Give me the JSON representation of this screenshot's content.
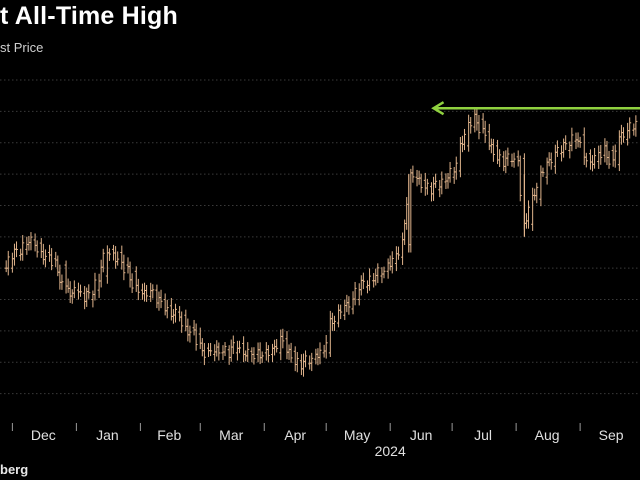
{
  "header": {
    "title": "t All-Time High",
    "subtitle": "st Price"
  },
  "footer": {
    "source": "berg"
  },
  "colors": {
    "background": "#000000",
    "bars": "#e0b48c",
    "arrow": "#8fd13f",
    "grid": "#3a3a3a"
  },
  "chart_data": {
    "type": "line",
    "title": "t All-Time High",
    "subtitle": "st Price",
    "xlabel": "",
    "ylabel": "",
    "x_axis": {
      "months": [
        "Dec",
        "Jan",
        "Feb",
        "Mar",
        "Apr",
        "May",
        "Jun",
        "Jul",
        "Aug",
        "Sep"
      ],
      "year": "2024"
    },
    "grid": true,
    "series": [
      {
        "name": "",
        "style": "ohlc-bars",
        "points": [
          [
            "2023-11-28",
            260
          ],
          [
            "2023-12-01",
            268
          ],
          [
            "2023-12-05",
            272
          ],
          [
            "2023-12-08",
            278
          ],
          [
            "2023-12-12",
            276
          ],
          [
            "2023-12-15",
            270
          ],
          [
            "2023-12-19",
            266
          ],
          [
            "2023-12-22",
            262
          ],
          [
            "2023-12-27",
            246
          ],
          [
            "2024-01-02",
            244
          ],
          [
            "2024-01-05",
            240
          ],
          [
            "2024-01-09",
            246
          ],
          [
            "2024-01-12",
            255
          ],
          [
            "2024-01-16",
            272
          ],
          [
            "2024-01-19",
            270
          ],
          [
            "2024-01-23",
            262
          ],
          [
            "2024-01-26",
            258
          ],
          [
            "2024-01-30",
            246
          ],
          [
            "2024-02-02",
            242
          ],
          [
            "2024-02-06",
            246
          ],
          [
            "2024-02-09",
            240
          ],
          [
            "2024-02-13",
            236
          ],
          [
            "2024-02-16",
            232
          ],
          [
            "2024-02-20",
            230
          ],
          [
            "2024-02-23",
            222
          ],
          [
            "2024-02-27",
            218
          ],
          [
            "2024-03-01",
            209
          ],
          [
            "2024-03-05",
            205
          ],
          [
            "2024-03-08",
            206
          ],
          [
            "2024-03-12",
            208
          ],
          [
            "2024-03-15",
            206
          ],
          [
            "2024-03-19",
            212
          ],
          [
            "2024-03-22",
            207
          ],
          [
            "2024-03-26",
            205
          ],
          [
            "2024-03-29",
            206
          ],
          [
            "2024-04-02",
            205
          ],
          [
            "2024-04-05",
            206
          ],
          [
            "2024-04-09",
            215
          ],
          [
            "2024-04-12",
            207
          ],
          [
            "2024-04-16",
            201
          ],
          [
            "2024-04-19",
            199
          ],
          [
            "2024-04-23",
            202
          ],
          [
            "2024-04-26",
            206
          ],
          [
            "2024-04-30",
            206
          ],
          [
            "2024-05-03",
            225
          ],
          [
            "2024-05-07",
            230
          ],
          [
            "2024-05-10",
            234
          ],
          [
            "2024-05-14",
            240
          ],
          [
            "2024-05-17",
            248
          ],
          [
            "2024-05-21",
            252
          ],
          [
            "2024-05-24",
            255
          ],
          [
            "2024-05-28",
            258
          ],
          [
            "2024-05-31",
            263
          ],
          [
            "2024-06-04",
            267
          ],
          [
            "2024-06-07",
            275
          ],
          [
            "2024-06-11",
            318
          ],
          [
            "2024-06-14",
            316
          ],
          [
            "2024-06-18",
            312
          ],
          [
            "2024-06-21",
            310
          ],
          [
            "2024-06-25",
            315
          ],
          [
            "2024-06-28",
            318
          ],
          [
            "2024-07-02",
            322
          ],
          [
            "2024-07-05",
            338
          ],
          [
            "2024-07-09",
            350
          ],
          [
            "2024-07-12",
            355
          ],
          [
            "2024-07-16",
            347
          ],
          [
            "2024-07-19",
            338
          ],
          [
            "2024-07-23",
            331
          ],
          [
            "2024-07-26",
            328
          ],
          [
            "2024-07-30",
            331
          ],
          [
            "2024-08-02",
            330
          ],
          [
            "2024-08-05",
            288
          ],
          [
            "2024-08-09",
            304
          ],
          [
            "2024-08-13",
            318
          ],
          [
            "2024-08-16",
            325
          ],
          [
            "2024-08-20",
            333
          ],
          [
            "2024-08-23",
            335
          ],
          [
            "2024-08-27",
            341
          ],
          [
            "2024-08-30",
            345
          ],
          [
            "2024-09-03",
            333
          ],
          [
            "2024-09-06",
            328
          ],
          [
            "2024-09-10",
            332
          ],
          [
            "2024-09-13",
            335
          ],
          [
            "2024-09-17",
            326
          ],
          [
            "2024-09-20",
            342
          ],
          [
            "2024-09-24",
            348
          ],
          [
            "2024-09-27",
            351
          ]
        ]
      }
    ],
    "annotations": [
      {
        "type": "arrow",
        "direction": "left",
        "color": "#8fd13f",
        "from": "2024-09-30",
        "to": "2024-06-22",
        "value": 362
      }
    ],
    "ylim": [
      160,
      380
    ],
    "xlim": [
      "2023-11-25",
      "2024-09-30"
    ]
  }
}
